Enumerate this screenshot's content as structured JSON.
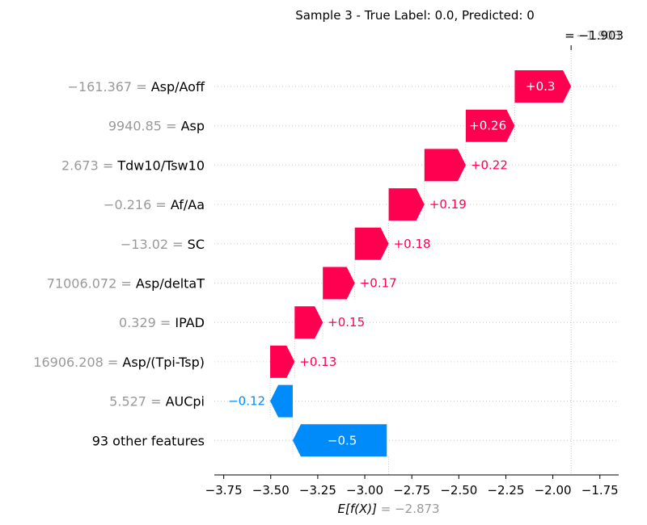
{
  "chart_data": {
    "type": "waterfall",
    "title": "Sample 3 - True Label: 0.0, Predicted: 0",
    "base_value": -2.873,
    "base_value_label": "= −2.873",
    "base_label_prefix": "E[f(X)]",
    "output_value": -1.903,
    "output_value_label": "= −1.903",
    "output_value_label_ghost": "−1.903",
    "xlim": [
      -3.8,
      -1.65
    ],
    "x_ticks": [
      -3.75,
      -3.5,
      -3.25,
      -3.0,
      -2.75,
      -2.5,
      -2.25,
      -2.0,
      -1.75
    ],
    "x_tick_labels": [
      "−3.75",
      "−3.50",
      "−3.25",
      "−3.00",
      "−2.75",
      "−2.50",
      "−2.25",
      "−2.00",
      "−1.75"
    ],
    "colors": {
      "positive": "#ff0051",
      "negative": "#008bfb",
      "value_text": "#999999",
      "label_text": "#000000"
    },
    "features": [
      {
        "value": "−161.367",
        "name": "Asp/Aoff",
        "contribution": 0.3,
        "label": "+0.3"
      },
      {
        "value": "9940.85",
        "name": "Asp",
        "contribution": 0.26,
        "label": "+0.26"
      },
      {
        "value": "2.673",
        "name": "Tdw10/Tsw10",
        "contribution": 0.22,
        "label": "+0.22"
      },
      {
        "value": "−0.216",
        "name": "Af/Aa",
        "contribution": 0.19,
        "label": "+0.19"
      },
      {
        "value": "−13.02",
        "name": "SC",
        "contribution": 0.18,
        "label": "+0.18"
      },
      {
        "value": "71006.072",
        "name": "Asp/deltaT",
        "contribution": 0.17,
        "label": "+0.17"
      },
      {
        "value": "0.329",
        "name": "IPAD",
        "contribution": 0.15,
        "label": "+0.15"
      },
      {
        "value": "16906.208",
        "name": "Asp/(Tpi-Tsp)",
        "contribution": 0.13,
        "label": "+0.13"
      },
      {
        "value": "5.527",
        "name": "AUCpi",
        "contribution": -0.12,
        "label": "−0.12"
      },
      {
        "value": "",
        "name": "93 other features",
        "contribution": -0.5,
        "label": "−0.5"
      }
    ]
  }
}
